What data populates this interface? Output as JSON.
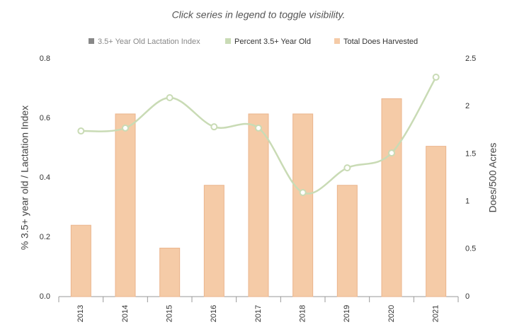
{
  "chart_data": {
    "type": "bar-line",
    "subtitle": "Click series in legend to toggle visibility.",
    "categories": [
      "2013",
      "2014",
      "2015",
      "2016",
      "2017",
      "2018",
      "2019",
      "2020",
      "2021"
    ],
    "series": [
      {
        "name": "3.5+ Year Old Lactation Index",
        "color": "#888888",
        "type": "line",
        "hidden": true,
        "values": [
          null,
          null,
          null,
          null,
          null,
          null,
          null,
          null,
          null
        ]
      },
      {
        "name": "Percent 3.5+ Year Old",
        "color": "#c9dbb5",
        "type": "line",
        "values": [
          0.557,
          0.567,
          0.669,
          0.571,
          0.567,
          0.35,
          0.433,
          0.483,
          0.738
        ]
      },
      {
        "name": "Total Does Harvested",
        "color": "#f5cba7",
        "type": "bar",
        "axis": "y2",
        "values": [
          0.75,
          1.92,
          0.51,
          1.17,
          1.92,
          1.92,
          1.17,
          2.08,
          1.58
        ]
      }
    ],
    "ylabel": "% 3.5+ year old / Lactation Index",
    "y2label": "Does/500 Acres",
    "ylim": [
      0,
      0.8
    ],
    "yticks": [
      {
        "value": 0,
        "label": "0.0"
      },
      0.2,
      0.4,
      0.6,
      0.8
    ],
    "y2lim": [
      0,
      2.5
    ],
    "y2ticks": [
      0,
      0.5,
      1,
      1.5,
      2,
      2.5
    ],
    "grid": false,
    "legend": "top"
  }
}
